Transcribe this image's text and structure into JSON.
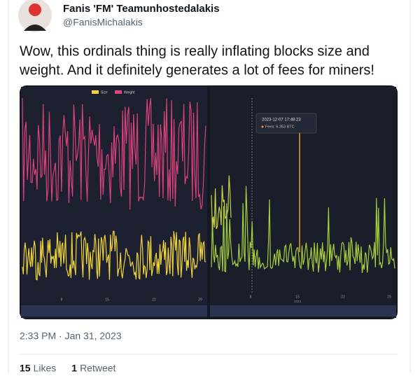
{
  "tweet": {
    "name": "Fanis 'FM' Teamunhostedalakis",
    "handle": "@FanisMichalakis",
    "text_lines": [
      "Wow, this ordinals thing is really inflating blocks size and",
      "weight. And it definitely generates a lot of fees for miners!"
    ],
    "timestamp": "2:33 PM · Jan 31, 2023",
    "stats": [
      {
        "count": "15",
        "label": "Likes"
      },
      {
        "count": "1",
        "label": "Retweet"
      }
    ]
  },
  "image": {
    "left_legend": [
      "Size",
      "Weight"
    ],
    "left_ticks": [
      "8",
      "15",
      "22",
      "29"
    ],
    "right_ticks": [
      "8",
      "15",
      "22",
      "29"
    ],
    "right_year": "2023",
    "tooltip": {
      "date": "2023-12-07 17:48:23",
      "label": "Fees: 6.353 BTC"
    }
  }
}
